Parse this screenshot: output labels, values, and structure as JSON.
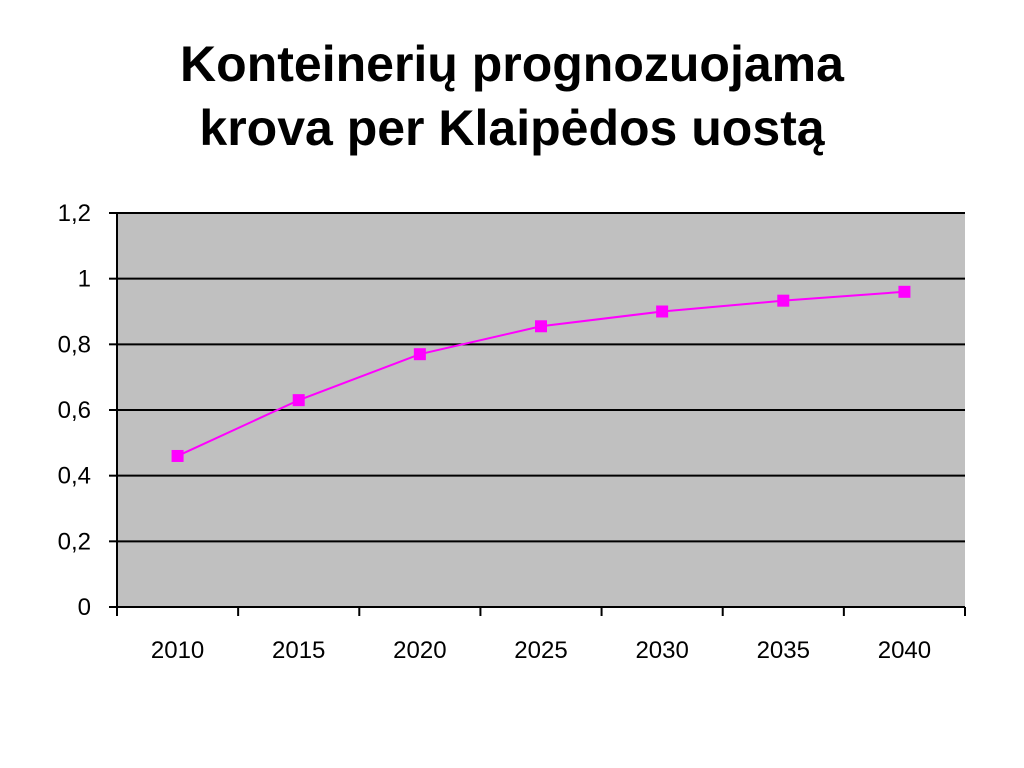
{
  "slide": {
    "title_line1": "Konteinerių prognozuojama",
    "title_line2": "krova per Klaipėdos uostą"
  },
  "chart_data": {
    "type": "line",
    "title": "Konteinerių prognozuojama krova per Klaipėdos uostą",
    "categories": [
      "2010",
      "2015",
      "2020",
      "2025",
      "2030",
      "2035",
      "2040"
    ],
    "series": [
      {
        "values": [
          0.46,
          0.63,
          0.77,
          0.855,
          0.9,
          0.933,
          0.96
        ]
      }
    ],
    "y_tick_labels": [
      "0",
      "0,2",
      "0,4",
      "0,6",
      "0,8",
      "1",
      "1,2"
    ],
    "y_ticks": [
      0,
      0.2,
      0.4,
      0.6,
      0.8,
      1,
      1.2
    ],
    "ylim": [
      0,
      1.2
    ],
    "grid": true,
    "legend": "none",
    "colors": {
      "plot_background": "#c0c0c0",
      "line": "#ff00ff",
      "marker": "#ff00ff",
      "gridline": "#000000"
    }
  }
}
